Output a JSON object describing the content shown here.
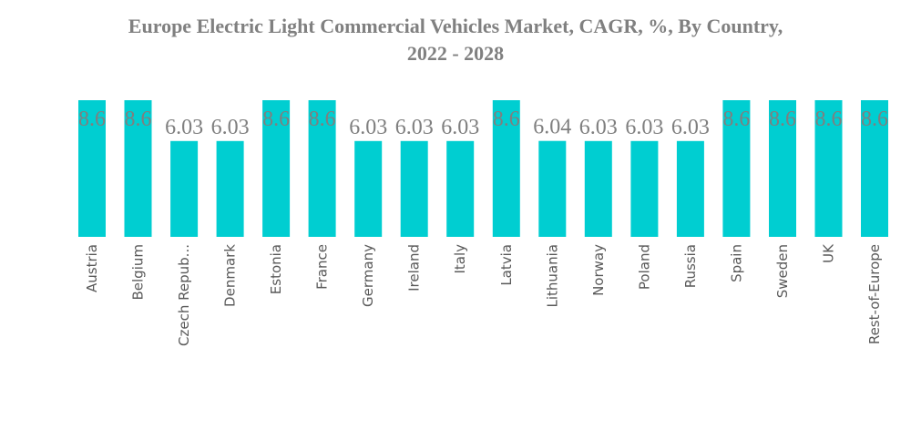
{
  "chart_data": {
    "type": "bar",
    "title": "Europe Electric Light Commercial Vehicles Market, CAGR, %, By Country, 2022 - 2028",
    "title_lines": [
      "Europe Electric Light Commercial Vehicles Market, CAGR, %, By Country,",
      "2022 - 2028"
    ],
    "xlabel": "",
    "ylabel": "",
    "categories": [
      "Austria",
      "Belgium",
      "Czech Repub...",
      "Denmark",
      "Estonia",
      "France",
      "Germany",
      "Ireland",
      "Italy",
      "Latvia",
      "Lithuania",
      "Norway",
      "Poland",
      "Russia",
      "Spain",
      "Sweden",
      "UK",
      "Rest-of-Europe"
    ],
    "values": [
      8.6,
      8.6,
      6.03,
      6.03,
      8.6,
      8.6,
      6.03,
      6.03,
      6.03,
      8.6,
      6.04,
      6.03,
      6.03,
      6.03,
      8.6,
      8.6,
      8.6,
      8.6
    ],
    "data_labels": [
      "8.6",
      "8.6",
      "6.03",
      "6.03",
      "8.6",
      "8.6",
      "6.03",
      "6.03",
      "6.03",
      "8.6",
      "6.04",
      "6.03",
      "6.03",
      "6.03",
      "8.6",
      "8.6",
      "8.6",
      "8.6"
    ],
    "ylim": [
      0,
      8.6
    ],
    "grid": false,
    "legend": "none",
    "bar_color": "#00CED1",
    "label_color": "#7f7f7f"
  }
}
